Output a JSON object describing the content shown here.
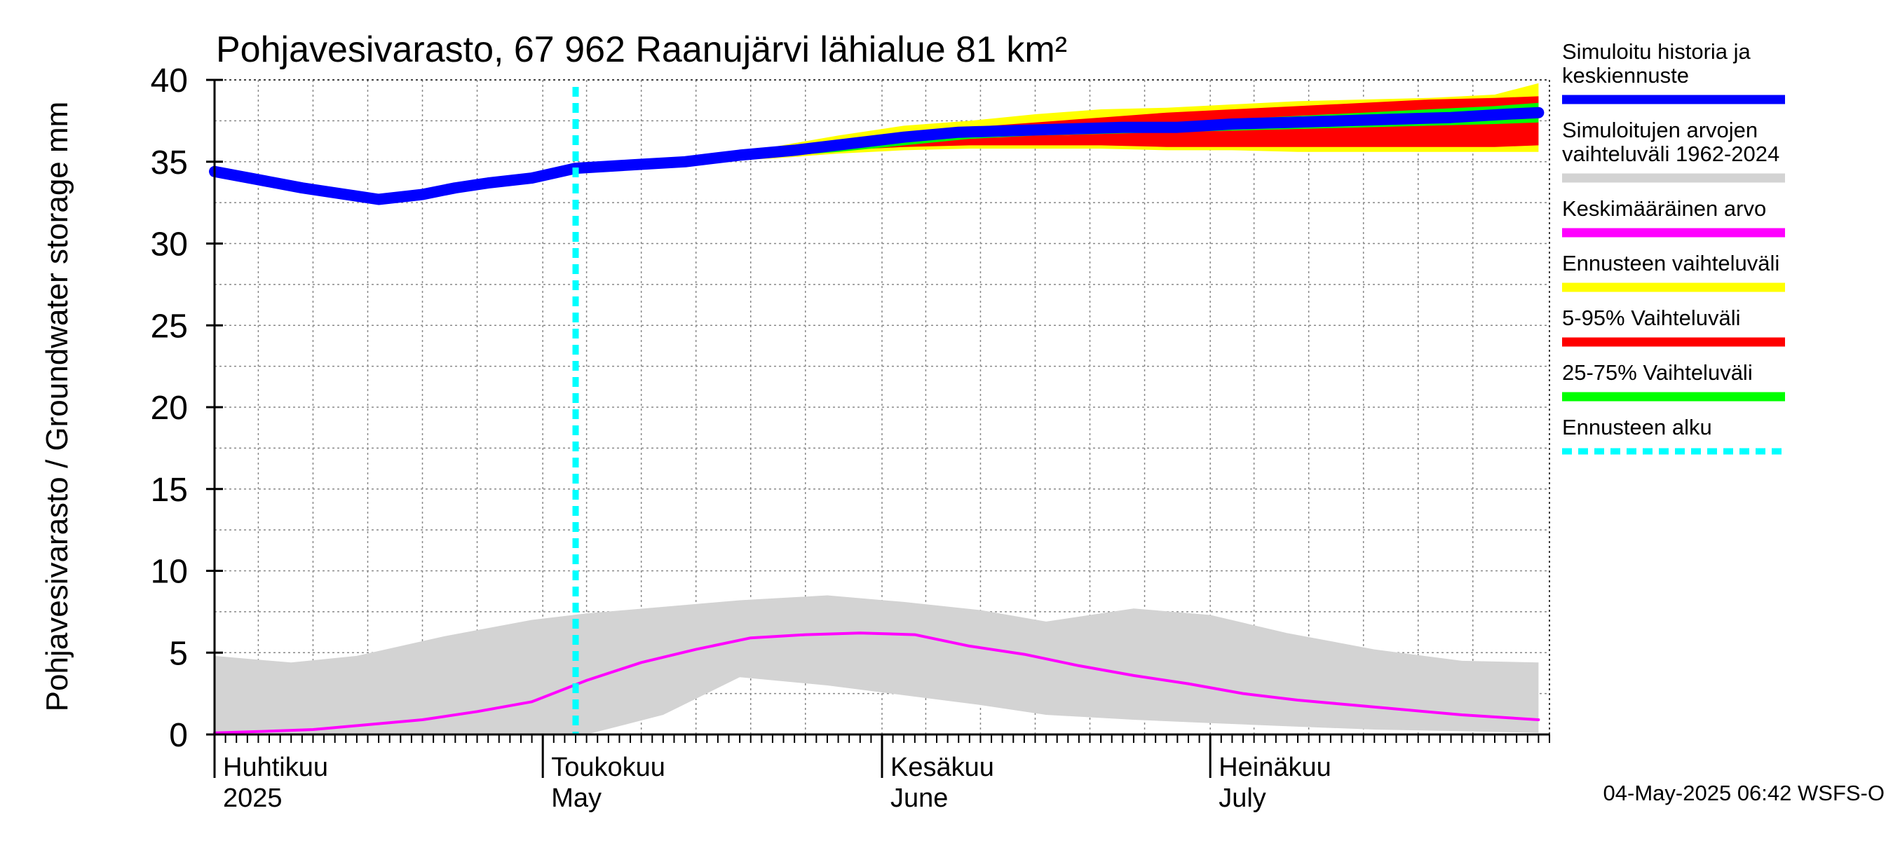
{
  "chart_data": {
    "type": "area",
    "title": "Pohjavesivarasto, 67 962 Raanujärvi lähialue 81 km²",
    "ylabel": "Pohjavesivarasto / Groundwater storage   mm",
    "ylim": [
      0,
      40
    ],
    "yticks": [
      "0",
      "5",
      "10",
      "15",
      "20",
      "25",
      "30",
      "35",
      "40"
    ],
    "xlim": [
      "2025-04-01",
      "2025-07-31"
    ],
    "grid": true,
    "legend_position": "right",
    "months": [
      {
        "date": "2025-04-01",
        "fi": "Huhtikuu",
        "en": "2025"
      },
      {
        "date": "2025-05-01",
        "fi": "Toukokuu",
        "en": "May"
      },
      {
        "date": "2025-06-01",
        "fi": "Kesäkuu",
        "en": "June"
      },
      {
        "date": "2025-07-01",
        "fi": "Heinäkuu",
        "en": "July"
      }
    ],
    "forecast_start": "2025-05-04",
    "series": [
      {
        "name": "Simuloitu historia ja keskiennuste",
        "x": [
          "2025-04-01",
          "2025-04-05",
          "2025-04-09",
          "2025-04-13",
          "2025-04-16",
          "2025-04-20",
          "2025-04-23",
          "2025-04-26",
          "2025-04-30",
          "2025-05-04",
          "2025-05-09",
          "2025-05-14",
          "2025-05-19",
          "2025-05-24",
          "2025-05-29",
          "2025-06-03",
          "2025-06-08",
          "2025-06-13",
          "2025-06-18",
          "2025-06-23",
          "2025-06-28",
          "2025-07-03",
          "2025-07-08",
          "2025-07-13",
          "2025-07-18",
          "2025-07-23",
          "2025-07-28",
          "2025-07-31"
        ],
        "values": [
          34.4,
          33.9,
          33.4,
          33.0,
          32.7,
          33.0,
          33.4,
          33.7,
          34.0,
          34.6,
          34.8,
          35.0,
          35.4,
          35.7,
          36.1,
          36.5,
          36.8,
          36.9,
          37.0,
          37.1,
          37.1,
          37.3,
          37.4,
          37.5,
          37.6,
          37.7,
          37.9,
          38.0
        ]
      },
      {
        "name": "Simuloitujen arvojen vaihteluväli 1962-2024",
        "x": [
          "2025-04-01",
          "2025-04-08",
          "2025-04-14",
          "2025-04-22",
          "2025-04-30",
          "2025-05-05",
          "2025-05-12",
          "2025-05-19",
          "2025-05-27",
          "2025-06-03",
          "2025-06-10",
          "2025-06-16",
          "2025-06-24",
          "2025-07-01",
          "2025-07-08",
          "2025-07-16",
          "2025-07-24",
          "2025-07-31"
        ],
        "upper": [
          4.8,
          4.4,
          4.8,
          6.0,
          7.0,
          7.4,
          7.8,
          8.2,
          8.5,
          8.1,
          7.6,
          6.9,
          7.7,
          7.3,
          6.2,
          5.2,
          4.5,
          4.4
        ],
        "lower": [
          0.0,
          0.0,
          0.0,
          0.0,
          0.0,
          0.0,
          1.2,
          3.5,
          3.0,
          2.4,
          1.8,
          1.2,
          0.9,
          0.7,
          0.5,
          0.3,
          0.2,
          0.1
        ]
      },
      {
        "name": "Keskimääräinen arvo",
        "x": [
          "2025-04-01",
          "2025-04-06",
          "2025-04-10",
          "2025-04-15",
          "2025-04-20",
          "2025-04-25",
          "2025-04-30",
          "2025-05-05",
          "2025-05-10",
          "2025-05-15",
          "2025-05-20",
          "2025-05-25",
          "2025-05-30",
          "2025-06-04",
          "2025-06-09",
          "2025-06-14",
          "2025-06-19",
          "2025-06-24",
          "2025-06-29",
          "2025-07-04",
          "2025-07-09",
          "2025-07-14",
          "2025-07-19",
          "2025-07-24",
          "2025-07-31"
        ],
        "values": [
          0.1,
          0.2,
          0.3,
          0.6,
          0.9,
          1.4,
          2.0,
          3.3,
          4.4,
          5.2,
          5.9,
          6.1,
          6.2,
          6.1,
          5.4,
          4.9,
          4.2,
          3.6,
          3.1,
          2.5,
          2.1,
          1.8,
          1.5,
          1.2,
          0.9
        ]
      },
      {
        "name": "Ennusteen vaihteluväli",
        "x": [
          "2025-05-04",
          "2025-05-10",
          "2025-05-16",
          "2025-05-22",
          "2025-05-28",
          "2025-06-03",
          "2025-06-09",
          "2025-06-15",
          "2025-06-21",
          "2025-06-27",
          "2025-07-03",
          "2025-07-09",
          "2025-07-15",
          "2025-07-21",
          "2025-07-27",
          "2025-07-31"
        ],
        "upper": [
          34.6,
          34.9,
          35.3,
          35.9,
          36.6,
          37.2,
          37.5,
          37.9,
          38.2,
          38.3,
          38.5,
          38.7,
          38.8,
          38.9,
          39.1,
          39.8
        ],
        "lower": [
          34.6,
          34.8,
          35.0,
          35.2,
          35.5,
          35.7,
          35.8,
          35.8,
          35.8,
          35.7,
          35.7,
          35.6,
          35.6,
          35.6,
          35.6,
          35.6
        ]
      },
      {
        "name": "5-95% Vaihteluväli",
        "x": [
          "2025-05-04",
          "2025-05-10",
          "2025-05-16",
          "2025-05-22",
          "2025-05-28",
          "2025-06-03",
          "2025-06-09",
          "2025-06-15",
          "2025-06-21",
          "2025-06-27",
          "2025-07-03",
          "2025-07-09",
          "2025-07-15",
          "2025-07-21",
          "2025-07-27",
          "2025-07-31"
        ],
        "upper": [
          34.6,
          34.9,
          35.2,
          35.6,
          36.2,
          36.8,
          37.1,
          37.4,
          37.7,
          38.0,
          38.2,
          38.4,
          38.6,
          38.8,
          38.9,
          39.0
        ],
        "lower": [
          34.6,
          34.8,
          35.1,
          35.4,
          35.7,
          35.9,
          36.0,
          36.0,
          36.0,
          35.9,
          35.9,
          35.9,
          35.9,
          35.9,
          35.9,
          36.0
        ]
      },
      {
        "name": "25-75% Vaihteluväli",
        "x": [
          "2025-05-04",
          "2025-05-10",
          "2025-05-16",
          "2025-05-22",
          "2025-05-28",
          "2025-06-03",
          "2025-06-09",
          "2025-06-15",
          "2025-06-21",
          "2025-06-27",
          "2025-07-03",
          "2025-07-09",
          "2025-07-15",
          "2025-07-21",
          "2025-07-27",
          "2025-07-31"
        ],
        "upper": [
          34.6,
          34.8,
          35.1,
          35.4,
          35.9,
          36.5,
          36.8,
          37.0,
          37.2,
          37.3,
          37.6,
          37.8,
          38.0,
          38.2,
          38.4,
          38.6
        ],
        "lower": [
          34.6,
          34.8,
          35.0,
          35.3,
          35.6,
          36.0,
          36.4,
          36.6,
          36.7,
          36.8,
          36.9,
          37.0,
          37.1,
          37.2,
          37.3,
          37.4
        ]
      }
    ],
    "legend": [
      {
        "text": [
          "Simuloitu historia ja",
          "keskiennuste"
        ],
        "color": "#0000ff"
      },
      {
        "text": [
          "Simuloitujen arvojen",
          "vaihteluväli 1962-2024"
        ],
        "color": "#d3d3d3"
      },
      {
        "text": [
          "Keskimääräinen arvo"
        ],
        "color": "#ff00ff"
      },
      {
        "text": [
          "Ennusteen vaihteluväli"
        ],
        "color": "#ffff00"
      },
      {
        "text": [
          "5-95% Vaihteluväli"
        ],
        "color": "#ff0000"
      },
      {
        "text": [
          "25-75% Vaihteluväli"
        ],
        "color": "#00ff00"
      },
      {
        "text": [
          "Ennusteen alku"
        ],
        "color": "#00ffff",
        "dashed": true
      }
    ]
  },
  "timestamp": "04-May-2025 06:42 WSFS-O"
}
